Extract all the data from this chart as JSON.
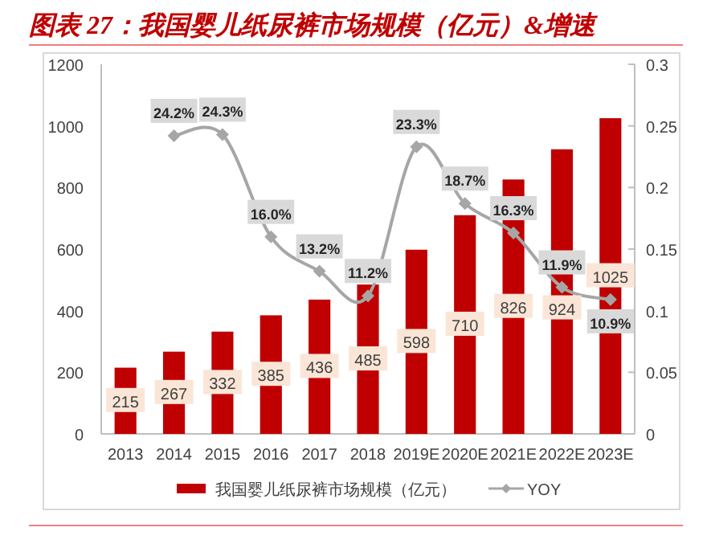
{
  "chart_data": {
    "type": "bar",
    "title": "图表 27：我国婴儿纸尿裤市场规模（亿元）&增速",
    "categories": [
      "2013",
      "2014",
      "2015",
      "2016",
      "2017",
      "2018",
      "2019E",
      "2020E",
      "2021E",
      "2022E",
      "2023E"
    ],
    "series": [
      {
        "name": "我国婴儿纸尿裤市场规模（亿元）",
        "color": "#c00000",
        "values": [
          215,
          267,
          332,
          385,
          436,
          485,
          598,
          710,
          826,
          924,
          1025
        ],
        "data_labels": true
      },
      {
        "name": "YOY",
        "type": "line",
        "axis": "y2",
        "color": "#a6a6a6",
        "marker": "diamond",
        "values": [
          null,
          0.242,
          0.243,
          0.16,
          0.132,
          0.112,
          0.233,
          0.187,
          0.163,
          0.119,
          0.109
        ],
        "value_labels": [
          null,
          "24.2%",
          "24.3%",
          "16.0%",
          "13.2%",
          "11.2%",
          "23.3%",
          "18.7%",
          "16.3%",
          "11.9%",
          "10.9%"
        ]
      }
    ],
    "ylim": [
      0,
      1200
    ],
    "yticks": [
      0,
      200,
      400,
      600,
      800,
      1000,
      1200
    ],
    "y2lim": [
      0,
      0.3
    ],
    "y2ticks": [
      0,
      0.05,
      0.1,
      0.15,
      0.2,
      0.25,
      0.3
    ],
    "grid": false,
    "legend": "bottom"
  }
}
